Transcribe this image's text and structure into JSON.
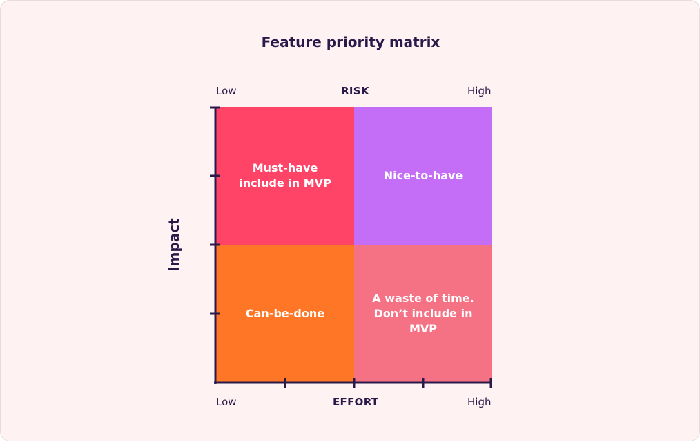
{
  "title": "Feature priority matrix",
  "top_axis": {
    "low": "Low",
    "label": "RISK",
    "high": "High"
  },
  "bottom_axis": {
    "low": "Low",
    "label": "EFFORT",
    "high": "High"
  },
  "y_axis": {
    "label": "Impact"
  },
  "quadrants": [
    {
      "text": "Must-have\ninclude in MVP",
      "color": "#ff4468"
    },
    {
      "text": "Nice-to-have",
      "color": "#c46ef7"
    },
    {
      "text": "Can-be-done",
      "color": "#ff7726"
    },
    {
      "text": "A waste of time.\nDon’t include in\nMVP",
      "color": "#f57285"
    }
  ],
  "colors": {
    "axis": "#2a1a4a",
    "background": "#fff2f2"
  }
}
